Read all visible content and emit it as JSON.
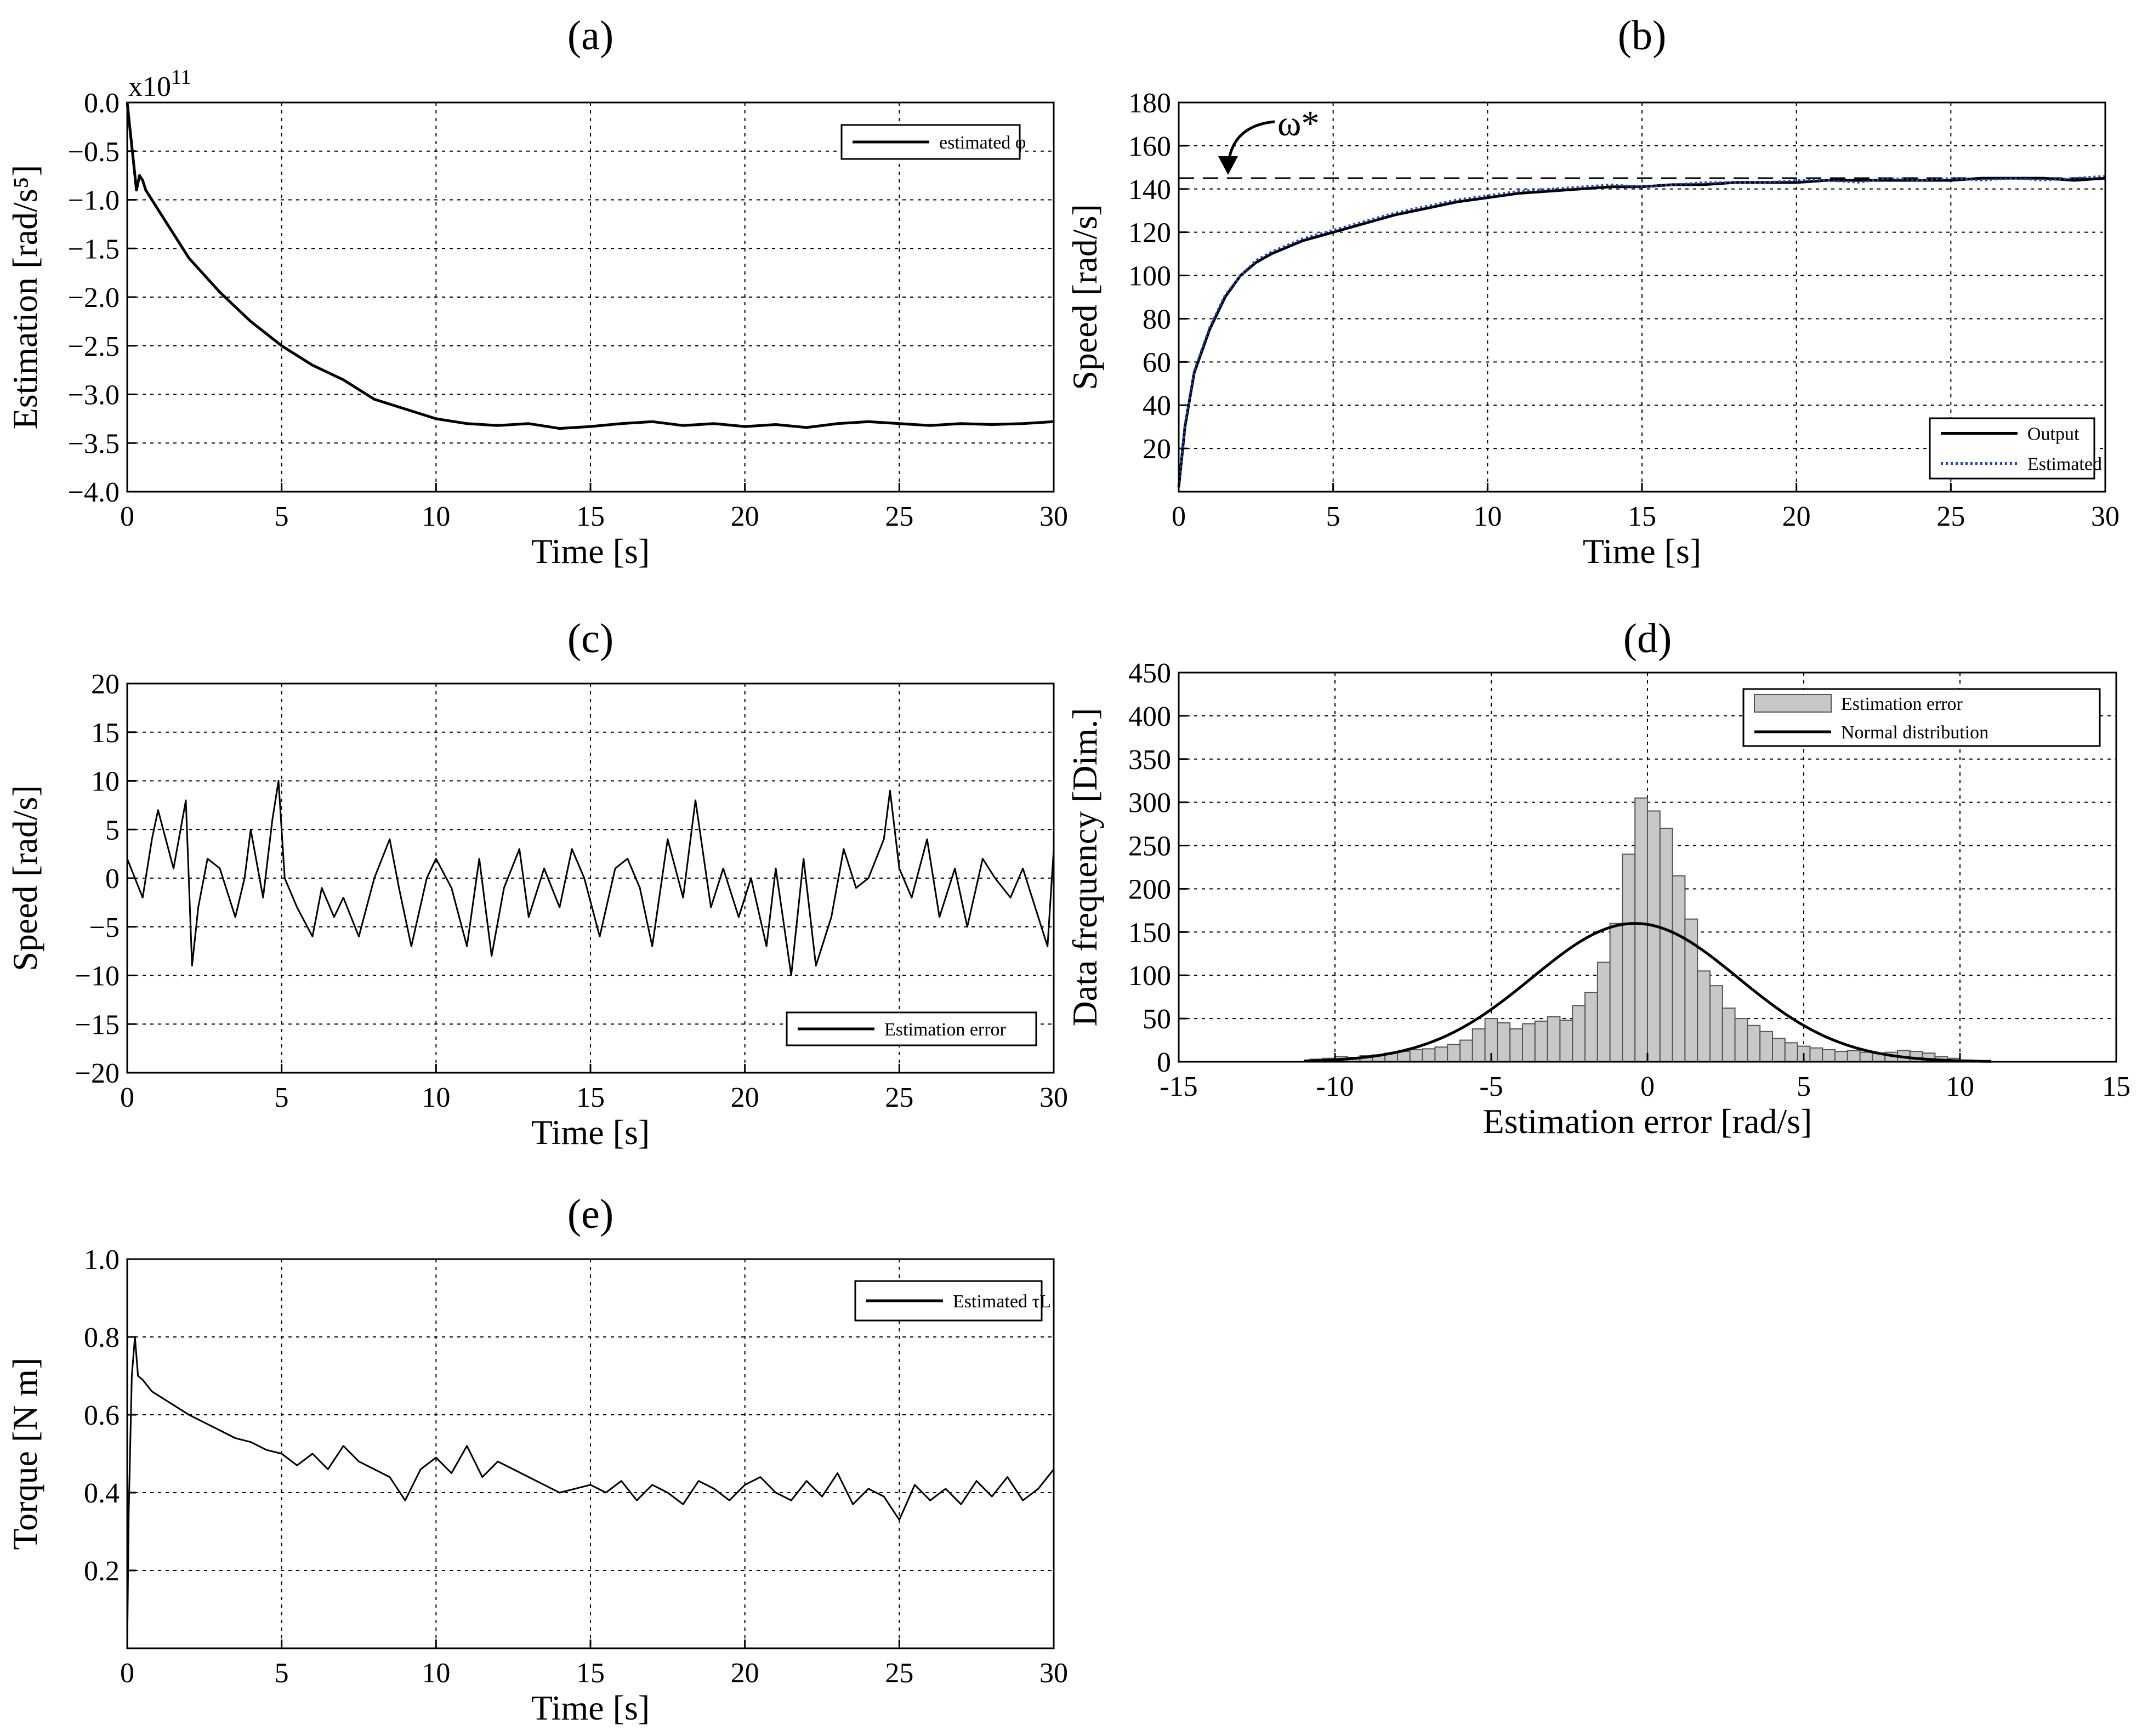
{
  "figure": {
    "panels": [
      "(a)",
      "(b)",
      "(c)",
      "(d)",
      "(e)"
    ]
  },
  "chart_data": [
    {
      "id": "a",
      "panel_label": "(a)",
      "type": "line",
      "title": "",
      "xlabel": "Time [s]",
      "ylabel": "Estimation [rad/s⁵]",
      "multiplier": "x10",
      "multiplier_exp": "11",
      "xlim": [
        0,
        30
      ],
      "ylim": [
        -4.0,
        0.0
      ],
      "xticks": [
        0,
        5,
        10,
        15,
        20,
        25,
        30
      ],
      "xtick_labels": [
        "0",
        "5",
        "10",
        "15",
        "20",
        "25",
        "30"
      ],
      "yticks": [
        -4.0,
        -3.5,
        -3.0,
        -2.5,
        -2.0,
        -1.5,
        -1.0,
        -0.5,
        0.0
      ],
      "ytick_labels": [
        "−4.0",
        "−3.5",
        "−3.0",
        "−2.5",
        "−2.0",
        "−1.5",
        "−1.0",
        "−0.5",
        "0.0"
      ],
      "grid": true,
      "legend": "top-right",
      "series": [
        {
          "name": "estimated φ",
          "color": "#000000",
          "style": "solid",
          "x": [
            0,
            0.1,
            0.2,
            0.3,
            0.4,
            0.5,
            0.6,
            0.8,
            1,
            1.5,
            2,
            3,
            4,
            5,
            6,
            7,
            7.5,
            8,
            9,
            10,
            11,
            12,
            13,
            14,
            15,
            16,
            17,
            18,
            19,
            20,
            21,
            22,
            23,
            24,
            25,
            26,
            27,
            28,
            29,
            30
          ],
          "values": [
            0.0,
            -0.3,
            -0.6,
            -0.9,
            -0.75,
            -0.8,
            -0.9,
            -1.0,
            -1.1,
            -1.35,
            -1.6,
            -1.95,
            -2.25,
            -2.5,
            -2.7,
            -2.85,
            -2.95,
            -3.05,
            -3.15,
            -3.25,
            -3.3,
            -3.32,
            -3.3,
            -3.35,
            -3.33,
            -3.3,
            -3.28,
            -3.32,
            -3.3,
            -3.33,
            -3.31,
            -3.34,
            -3.3,
            -3.28,
            -3.3,
            -3.32,
            -3.3,
            -3.31,
            -3.3,
            -3.28
          ]
        }
      ]
    },
    {
      "id": "b",
      "panel_label": "(b)",
      "type": "line",
      "title": "",
      "xlabel": "Time [s]",
      "ylabel": "Speed [rad/s]",
      "xlim": [
        0,
        30
      ],
      "ylim": [
        0,
        180
      ],
      "xticks": [
        0,
        5,
        10,
        15,
        20,
        25,
        30
      ],
      "xtick_labels": [
        "0",
        "5",
        "10",
        "15",
        "20",
        "25",
        "30"
      ],
      "yticks": [
        20,
        40,
        60,
        80,
        100,
        120,
        140,
        160,
        180
      ],
      "ytick_labels": [
        "20",
        "40",
        "60",
        "80",
        "100",
        "120",
        "140",
        "160",
        "180"
      ],
      "grid": true,
      "legend": "bottom-right",
      "reference": {
        "label": "ω*",
        "value": 145
      },
      "series": [
        {
          "name": "Output",
          "color": "#000000",
          "style": "solid",
          "x": [
            0,
            0.2,
            0.5,
            1,
            1.5,
            2,
            2.5,
            3,
            4,
            5,
            6,
            7,
            8,
            9,
            10,
            11,
            12,
            13,
            14,
            15,
            16,
            17,
            18,
            19,
            20,
            21,
            22,
            23,
            24,
            25,
            26,
            27,
            28,
            29,
            30
          ],
          "values": [
            2,
            30,
            55,
            75,
            90,
            100,
            106,
            110,
            116,
            120,
            124,
            128,
            131,
            134,
            136,
            138,
            139,
            140,
            141,
            141,
            142,
            142,
            143,
            143,
            143,
            144,
            144,
            144,
            144,
            144,
            145,
            145,
            145,
            144,
            145
          ]
        },
        {
          "name": "Estimated",
          "color": "#1f3fd6",
          "style": "dotted",
          "x": [
            0,
            0.2,
            0.5,
            1,
            1.5,
            2,
            2.5,
            3,
            4,
            5,
            6,
            7,
            8,
            9,
            10,
            11,
            12,
            13,
            14,
            15,
            16,
            17,
            18,
            19,
            20,
            21,
            22,
            23,
            24,
            25,
            26,
            27,
            28,
            29,
            30
          ],
          "values": [
            2,
            31,
            56,
            76,
            91,
            100,
            107,
            111,
            117,
            121,
            125,
            129,
            132,
            135,
            137,
            139,
            140,
            141,
            142,
            141,
            142,
            143,
            143,
            143,
            144,
            144,
            143,
            145,
            144,
            145,
            144,
            145,
            144,
            145,
            146
          ]
        }
      ]
    },
    {
      "id": "c",
      "panel_label": "(c)",
      "type": "line",
      "title": "",
      "xlabel": "Time [s]",
      "ylabel": "Speed [rad/s]",
      "xlim": [
        0,
        30
      ],
      "ylim": [
        -20,
        20
      ],
      "xticks": [
        0,
        5,
        10,
        15,
        20,
        25,
        30
      ],
      "xtick_labels": [
        "0",
        "5",
        "10",
        "15",
        "20",
        "25",
        "30"
      ],
      "yticks": [
        -20,
        -15,
        -10,
        -5,
        0,
        5,
        10,
        15,
        20
      ],
      "ytick_labels": [
        "−20",
        "−15",
        "−10",
        "−5",
        "0",
        "5",
        "10",
        "15",
        "20"
      ],
      "grid": true,
      "legend": "bottom-right",
      "series": [
        {
          "name": "Estimation error",
          "color": "#000000",
          "style": "solid",
          "x": [
            0,
            0.5,
            0.8,
            1,
            1.5,
            1.9,
            2.1,
            2.3,
            2.6,
            3,
            3.5,
            3.8,
            4,
            4.4,
            4.7,
            4.9,
            5.1,
            5.5,
            6,
            6.3,
            6.7,
            7,
            7.5,
            8,
            8.5,
            8.8,
            9.2,
            9.7,
            10,
            10.5,
            11,
            11.4,
            11.8,
            12.2,
            12.7,
            13,
            13.5,
            14,
            14.4,
            14.8,
            15.3,
            15.8,
            16.2,
            16.6,
            17,
            17.5,
            18,
            18.4,
            18.9,
            19.3,
            19.8,
            20.2,
            20.7,
            21,
            21.5,
            21.9,
            22.3,
            22.8,
            23.2,
            23.6,
            24,
            24.5,
            24.7,
            25,
            25.4,
            25.9,
            26.3,
            26.8,
            27.2,
            27.7,
            28.1,
            28.6,
            29,
            29.5,
            29.8,
            30
          ],
          "values": [
            2,
            -2,
            4,
            7,
            1,
            8,
            -9,
            -3,
            2,
            1,
            -4,
            0,
            5,
            -2,
            6,
            10,
            0,
            -3,
            -6,
            -1,
            -4,
            -2,
            -6,
            0,
            4,
            -1,
            -7,
            0,
            2,
            -1,
            -7,
            2,
            -8,
            -1,
            3,
            -4,
            1,
            -3,
            3,
            0,
            -6,
            1,
            2,
            -1,
            -7,
            4,
            -2,
            8,
            -3,
            1,
            -4,
            0,
            -7,
            1,
            -10,
            2,
            -9,
            -4,
            3,
            -1,
            0,
            4,
            9,
            1,
            -2,
            4,
            -4,
            1,
            -5,
            2,
            0,
            -2,
            1,
            -4,
            -7,
            3
          ]
        }
      ]
    },
    {
      "id": "d",
      "panel_label": "(d)",
      "type": "bar",
      "title": "",
      "xlabel": "Estimation error [rad/s]",
      "ylabel": "Data frequency [Dim.]",
      "xlim": [
        -15,
        15
      ],
      "ylim": [
        0,
        450
      ],
      "xticks": [
        -15,
        -10,
        -5,
        0,
        5,
        10,
        15
      ],
      "xtick_labels": [
        "-15",
        "-10",
        "-5",
        "0",
        "5",
        "10",
        "15"
      ],
      "yticks": [
        0,
        50,
        100,
        150,
        200,
        250,
        300,
        350,
        400,
        450
      ],
      "ytick_labels": [
        "0",
        "50",
        "100",
        "150",
        "200",
        "250",
        "300",
        "350",
        "400",
        "450"
      ],
      "grid": true,
      "legend": "top-right",
      "bin_width": 0.4,
      "bin_centers": [
        -10.6,
        -10.2,
        -9.8,
        -9.4,
        -9.0,
        -8.6,
        -8.2,
        -7.8,
        -7.4,
        -7.0,
        -6.6,
        -6.2,
        -5.8,
        -5.4,
        -5.0,
        -4.6,
        -4.2,
        -3.8,
        -3.4,
        -3.0,
        -2.6,
        -2.2,
        -1.8,
        -1.4,
        -1.0,
        -0.6,
        -0.2,
        0.2,
        0.6,
        1.0,
        1.4,
        1.8,
        2.2,
        2.6,
        3.0,
        3.4,
        3.8,
        4.2,
        4.6,
        5.0,
        5.4,
        5.8,
        6.2,
        6.6,
        7.0,
        7.4,
        7.8,
        8.2,
        8.6,
        9.0,
        9.4,
        9.8,
        10.2,
        10.6
      ],
      "series": [
        {
          "name": "Estimation error",
          "color": "#c8c8c8",
          "values": [
            3,
            4,
            6,
            5,
            7,
            8,
            10,
            12,
            14,
            15,
            17,
            20,
            25,
            38,
            50,
            45,
            38,
            44,
            47,
            52,
            48,
            65,
            80,
            115,
            160,
            240,
            305,
            290,
            270,
            215,
            165,
            105,
            88,
            62,
            50,
            42,
            35,
            27,
            22,
            18,
            16,
            14,
            12,
            13,
            11,
            10,
            11,
            13,
            12,
            10,
            6,
            4,
            2,
            1
          ]
        },
        {
          "name": "Normal distribution",
          "color": "#000000",
          "mean": -0.4,
          "peak": 160,
          "sigma": 3.3
        }
      ]
    },
    {
      "id": "e",
      "panel_label": "(e)",
      "type": "line",
      "title": "",
      "xlabel": "Time [s]",
      "ylabel": "Torque [N m]",
      "xlim": [
        0,
        30
      ],
      "ylim": [
        0,
        1.0
      ],
      "xticks": [
        0,
        5,
        10,
        15,
        20,
        25,
        30
      ],
      "xtick_labels": [
        "0",
        "5",
        "10",
        "15",
        "20",
        "25",
        "30"
      ],
      "yticks": [
        0.2,
        0.4,
        0.6,
        0.8,
        1.0
      ],
      "ytick_labels": [
        "0.2",
        "0.4",
        "0.6",
        "0.8",
        "1.0"
      ],
      "grid": true,
      "legend": "top-right",
      "series": [
        {
          "name": "Estimated τL",
          "color": "#000000",
          "style": "solid",
          "x": [
            0,
            0.05,
            0.15,
            0.25,
            0.35,
            0.5,
            0.8,
            1.2,
            1.6,
            2,
            2.5,
            3,
            3.5,
            4,
            4.5,
            5,
            5.5,
            6,
            6.5,
            7,
            7.5,
            8,
            8.5,
            9,
            9.5,
            10,
            10.5,
            11,
            11.5,
            12,
            12.5,
            13,
            13.5,
            14,
            14.5,
            15,
            15.5,
            16,
            16.5,
            17,
            17.5,
            18,
            18.5,
            19,
            19.5,
            20,
            20.5,
            21,
            21.5,
            22,
            22.5,
            23,
            23.5,
            24,
            24.5,
            25,
            25.5,
            26,
            26.5,
            27,
            27.5,
            28,
            28.5,
            29,
            29.5,
            30
          ],
          "values": [
            0.0,
            0.35,
            0.7,
            0.8,
            0.7,
            0.69,
            0.66,
            0.64,
            0.62,
            0.6,
            0.58,
            0.56,
            0.54,
            0.53,
            0.51,
            0.5,
            0.47,
            0.5,
            0.46,
            0.52,
            0.48,
            0.46,
            0.44,
            0.38,
            0.46,
            0.49,
            0.45,
            0.52,
            0.44,
            0.48,
            0.46,
            0.44,
            0.42,
            0.4,
            0.41,
            0.42,
            0.4,
            0.43,
            0.38,
            0.42,
            0.4,
            0.37,
            0.43,
            0.41,
            0.38,
            0.42,
            0.44,
            0.4,
            0.38,
            0.43,
            0.39,
            0.45,
            0.37,
            0.41,
            0.39,
            0.33,
            0.42,
            0.38,
            0.41,
            0.37,
            0.43,
            0.39,
            0.44,
            0.38,
            0.41,
            0.46
          ]
        }
      ]
    }
  ]
}
